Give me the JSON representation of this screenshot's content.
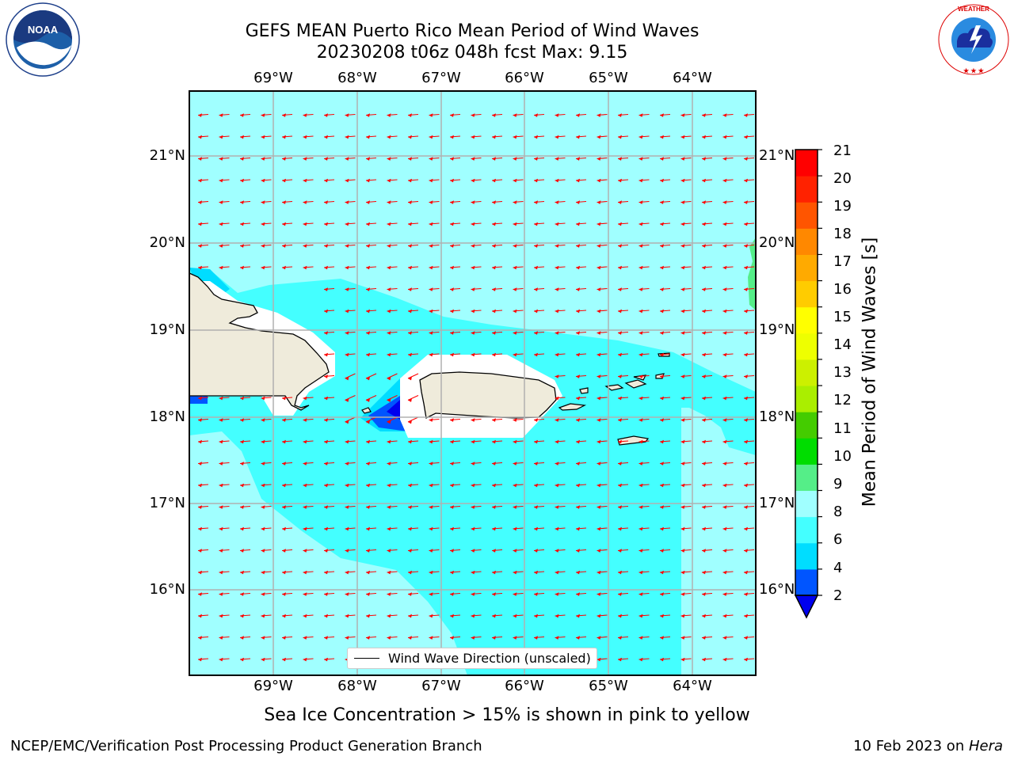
{
  "header": {
    "title_line1": "GEFS MEAN Puerto Rico Mean Period of Wind Waves",
    "title_line2": "20230208 t06z 048h fcst   Max: 9.15"
  },
  "logos": {
    "left": {
      "name": "NOAA",
      "ring_text": "NATIONAL OCEANIC AND ATMOSPHERIC ADMINISTRATION · U.S. DEPARTMENT OF COMMERCE"
    },
    "right": {
      "name": "NATIONAL WEATHER SERVICE"
    }
  },
  "map": {
    "longitude_labels": [
      "69°W",
      "68°W",
      "67°W",
      "66°W",
      "65°W",
      "64°W"
    ],
    "latitude_labels": [
      "21°N",
      "20°N",
      "19°N",
      "18°N",
      "17°N",
      "16°N"
    ],
    "legend_label": "Wind Wave Direction (unscaled)",
    "colors": {
      "land": "#efebdb",
      "coastline": "#000000",
      "arrows": "#ff0000",
      "gridlines": "#b0b0b0"
    }
  },
  "colorbar": {
    "title": "Mean Period of Wind Waves [s]",
    "tick_labels": [
      "2",
      "4",
      "6",
      "8",
      "9",
      "10",
      "11",
      "12",
      "13",
      "14",
      "15",
      "16",
      "17",
      "18",
      "19",
      "20",
      "21"
    ],
    "colors": [
      "#0055ff",
      "#00ddff",
      "#44ffff",
      "#a0ffff",
      "#55ee88",
      "#00dd00",
      "#44cc00",
      "#aaee00",
      "#ccf000",
      "#eeff00",
      "#ffff00",
      "#ffcc00",
      "#ffaa00",
      "#ff8800",
      "#ff5500",
      "#ff2200",
      "#ff0000"
    ],
    "extend_color": "#0000ee"
  },
  "footer": {
    "subtitle": "Sea Ice Concentration > 15% is shown in pink to yellow",
    "left": "NCEP/EMC/Verification Post Processing Product Generation Branch",
    "date": "10 Feb 2023 on ",
    "machine": "Hera"
  }
}
